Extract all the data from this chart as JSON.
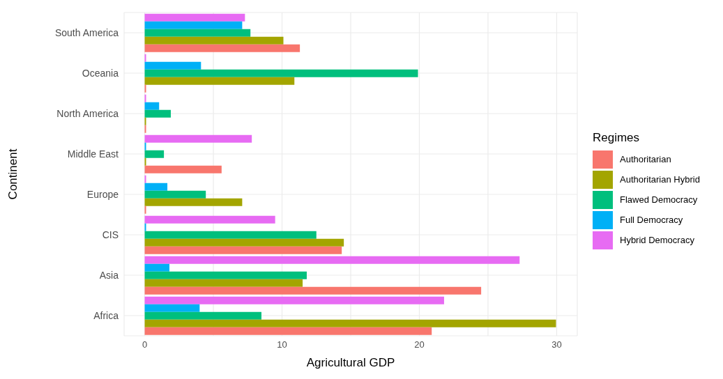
{
  "chart_data": {
    "type": "bar",
    "orientation": "horizontal",
    "xlabel": "Agricultural GDP",
    "ylabel": "Continent",
    "legend_title": "Regimes",
    "legend": "right",
    "grid": true,
    "categories": [
      "South America",
      "Oceania",
      "North America",
      "Middle East",
      "Europe",
      "CIS",
      "Asia",
      "Africa"
    ],
    "series": [
      {
        "name": "Authoritarian",
        "color": "#f8766d",
        "values": [
          11.3,
          0.1,
          0.1,
          5.6,
          0.1,
          14.35,
          24.5,
          20.9
        ]
      },
      {
        "name": "Authoritarian Hybrid",
        "color": "#a3a500",
        "values": [
          10.1,
          10.9,
          0.1,
          0.1,
          7.1,
          14.5,
          11.5,
          29.95
        ]
      },
      {
        "name": "Flawed Democracy",
        "color": "#00bf7d",
        "values": [
          7.7,
          19.9,
          1.9,
          1.4,
          4.45,
          12.5,
          11.8,
          8.5
        ]
      },
      {
        "name": "Full Democracy",
        "color": "#00b0f6",
        "values": [
          7.1,
          4.1,
          1.05,
          0.1,
          1.65,
          0.1,
          1.8,
          4.0
        ]
      },
      {
        "name": "Hybrid Democracy",
        "color": "#e76bf3",
        "values": [
          7.3,
          0.1,
          0.1,
          7.8,
          0.1,
          9.5,
          27.3,
          21.8
        ]
      }
    ],
    "xlim": [
      -1.5,
      31.5
    ],
    "xticks": [
      0,
      {
        "value": 5,
        "label": null
      },
      10,
      {
        "value": 15,
        "label": null
      },
      20,
      {
        "value": 25,
        "label": null
      },
      30
    ]
  }
}
